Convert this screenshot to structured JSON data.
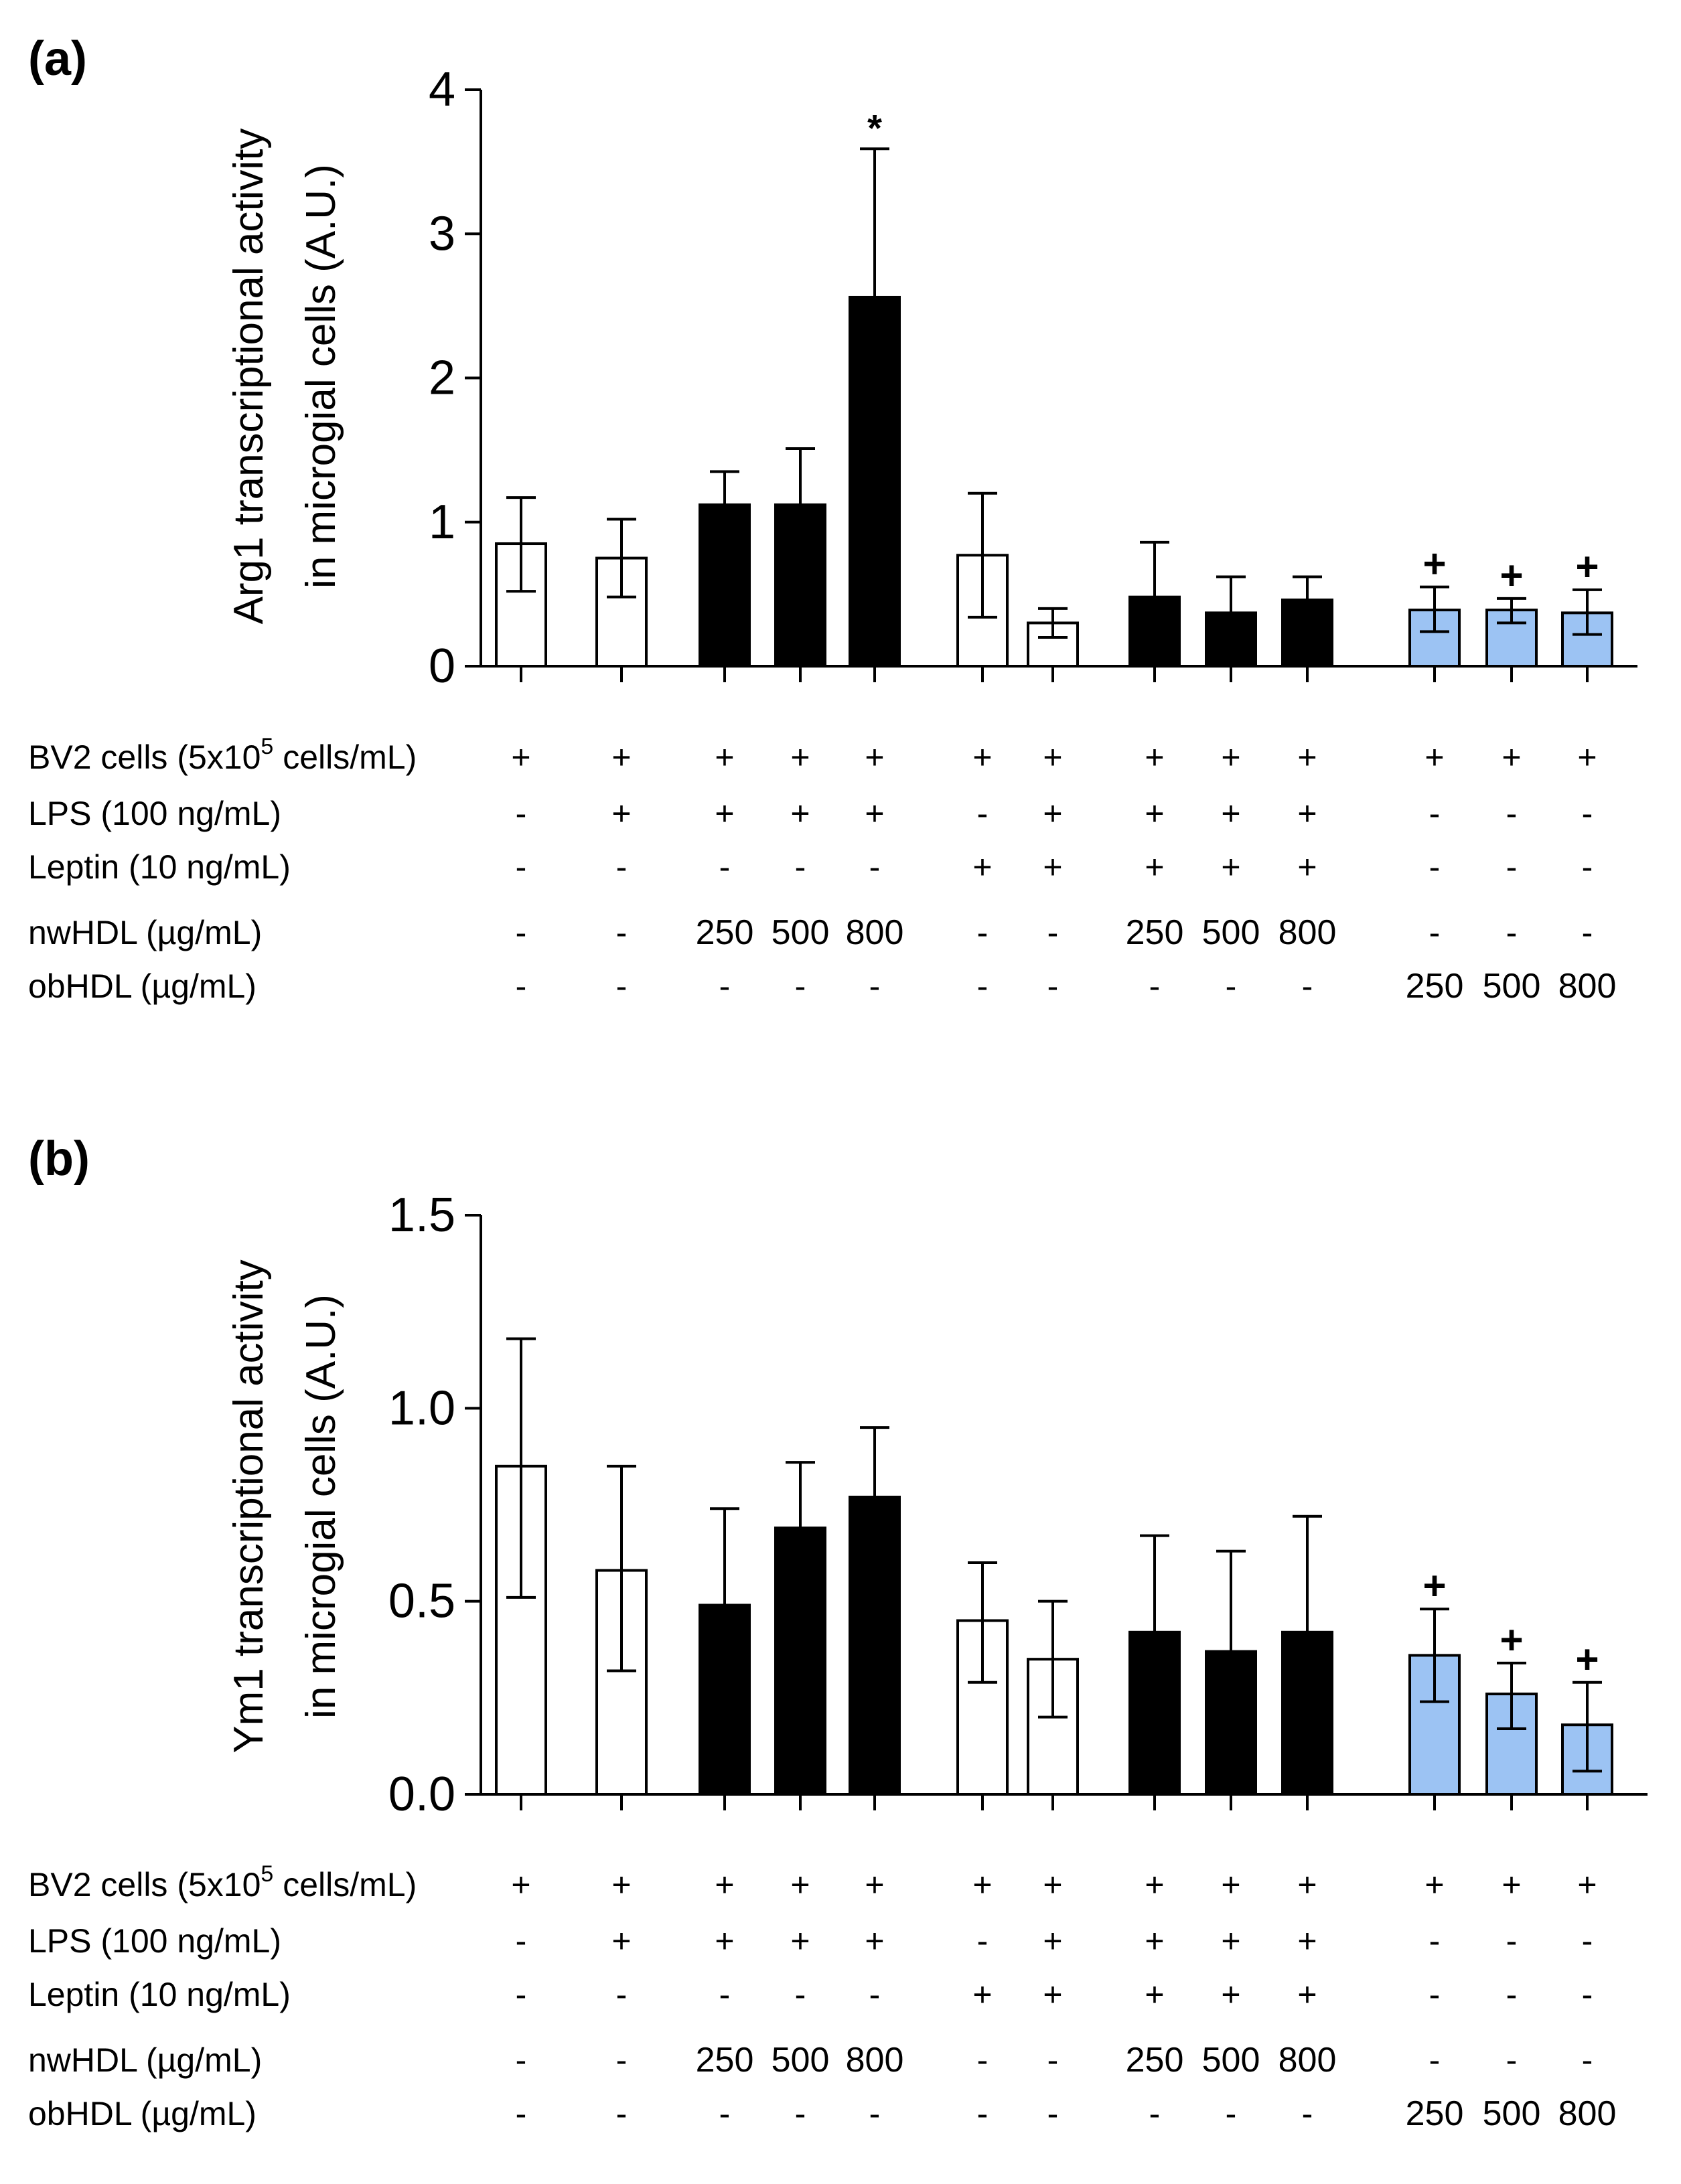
{
  "colors": {
    "white": "#ffffff",
    "black": "#000000",
    "blue": "#9cc3f3"
  },
  "treatment_rows": [
    {
      "label_main": "BV2 cells (5x10",
      "label_sup": "5",
      "label_tail": " cells/mL)"
    },
    {
      "label_main": "LPS (100 ng/mL)",
      "label_sup": "",
      "label_tail": ""
    },
    {
      "label_main": "Leptin (10 ng/mL)",
      "label_sup": "",
      "label_tail": ""
    },
    {
      "label_main": "nwHDL (µg/mL)",
      "label_sup": "",
      "label_tail": ""
    },
    {
      "label_main": "obHDL (µg/mL)",
      "label_sup": "",
      "label_tail": ""
    }
  ],
  "treatment_values": [
    [
      "+",
      "+",
      "+",
      "+",
      "+",
      "+",
      "+",
      "+",
      "+",
      "+",
      "+",
      "+",
      "+"
    ],
    [
      "-",
      "+",
      "+",
      "+",
      "+",
      "-",
      "+",
      "+",
      "+",
      "+",
      "-",
      "-",
      "-"
    ],
    [
      "-",
      "-",
      "-",
      "-",
      "-",
      "+",
      "+",
      "+",
      "+",
      "+",
      "-",
      "-",
      "-"
    ],
    [
      "-",
      "-",
      "250",
      "500",
      "800",
      "-",
      "-",
      "250",
      "500",
      "800",
      "-",
      "-",
      "-"
    ],
    [
      "-",
      "-",
      "-",
      "-",
      "-",
      "-",
      "-",
      "-",
      "-",
      "-",
      "250",
      "500",
      "800"
    ]
  ],
  "chart_data": [
    {
      "type": "bar",
      "panel_label": "(a)",
      "ylabel_line1": "Arg1 transcriptional activity",
      "ylabel_line2": "in microgial cells (A.U.)",
      "ylim": [
        0,
        4
      ],
      "yticks": [
        0,
        1,
        2,
        3,
        4
      ],
      "ytick_labels": [
        "0",
        "1",
        "2",
        "3",
        "4"
      ],
      "bars": [
        {
          "value": 0.85,
          "err_low": 0.52,
          "err_high": 1.17,
          "fill": "white",
          "marker": ""
        },
        {
          "value": 0.75,
          "err_low": 0.48,
          "err_high": 1.02,
          "fill": "white",
          "marker": ""
        },
        {
          "value": 1.12,
          "err_low": 0.9,
          "err_high": 1.35,
          "fill": "black",
          "marker": ""
        },
        {
          "value": 1.12,
          "err_low": 0.73,
          "err_high": 1.51,
          "fill": "black",
          "marker": ""
        },
        {
          "value": 2.56,
          "err_low": 2.56,
          "err_high": 3.59,
          "fill": "black",
          "marker": "*"
        },
        {
          "value": 0.77,
          "err_low": 0.34,
          "err_high": 1.2,
          "fill": "white",
          "marker": ""
        },
        {
          "value": 0.3,
          "err_low": 0.2,
          "err_high": 0.4,
          "fill": "white",
          "marker": ""
        },
        {
          "value": 0.48,
          "err_low": 0.48,
          "err_high": 0.86,
          "fill": "black",
          "marker": ""
        },
        {
          "value": 0.37,
          "err_low": 0.37,
          "err_high": 0.62,
          "fill": "black",
          "marker": ""
        },
        {
          "value": 0.46,
          "err_low": 0.46,
          "err_high": 0.62,
          "fill": "black",
          "marker": ""
        },
        {
          "value": 0.39,
          "err_low": 0.24,
          "err_high": 0.55,
          "fill": "blue",
          "marker": "+"
        },
        {
          "value": 0.39,
          "err_low": 0.3,
          "err_high": 0.47,
          "fill": "blue",
          "marker": "+"
        },
        {
          "value": 0.37,
          "err_low": 0.22,
          "err_high": 0.53,
          "fill": "blue",
          "marker": "+"
        }
      ]
    },
    {
      "type": "bar",
      "panel_label": "(b)",
      "ylabel_line1": "Ym1 transcriptional activity",
      "ylabel_line2": "in microgial cells (A.U.)",
      "ylim": [
        0,
        1.5
      ],
      "yticks": [
        0,
        0.5,
        1.0,
        1.5
      ],
      "ytick_labels": [
        "0.0",
        "0.5",
        "1.0",
        "1.5"
      ],
      "bars": [
        {
          "value": 0.85,
          "err_low": 0.51,
          "err_high": 1.18,
          "fill": "white",
          "marker": ""
        },
        {
          "value": 0.58,
          "err_low": 0.32,
          "err_high": 0.85,
          "fill": "white",
          "marker": ""
        },
        {
          "value": 0.49,
          "err_low": 0.49,
          "err_high": 0.74,
          "fill": "black",
          "marker": ""
        },
        {
          "value": 0.69,
          "err_low": 0.69,
          "err_high": 0.86,
          "fill": "black",
          "marker": ""
        },
        {
          "value": 0.77,
          "err_low": 0.77,
          "err_high": 0.95,
          "fill": "black",
          "marker": ""
        },
        {
          "value": 0.45,
          "err_low": 0.29,
          "err_high": 0.6,
          "fill": "white",
          "marker": ""
        },
        {
          "value": 0.35,
          "err_low": 0.2,
          "err_high": 0.5,
          "fill": "white",
          "marker": ""
        },
        {
          "value": 0.42,
          "err_low": 0.42,
          "err_high": 0.67,
          "fill": "black",
          "marker": ""
        },
        {
          "value": 0.37,
          "err_low": 0.37,
          "err_high": 0.63,
          "fill": "black",
          "marker": ""
        },
        {
          "value": 0.42,
          "err_low": 0.42,
          "err_high": 0.72,
          "fill": "black",
          "marker": ""
        },
        {
          "value": 0.36,
          "err_low": 0.24,
          "err_high": 0.48,
          "fill": "blue",
          "marker": "+"
        },
        {
          "value": 0.26,
          "err_low": 0.17,
          "err_high": 0.34,
          "fill": "blue",
          "marker": "+"
        },
        {
          "value": 0.18,
          "err_low": 0.06,
          "err_high": 0.29,
          "fill": "blue",
          "marker": "+"
        }
      ]
    }
  ]
}
